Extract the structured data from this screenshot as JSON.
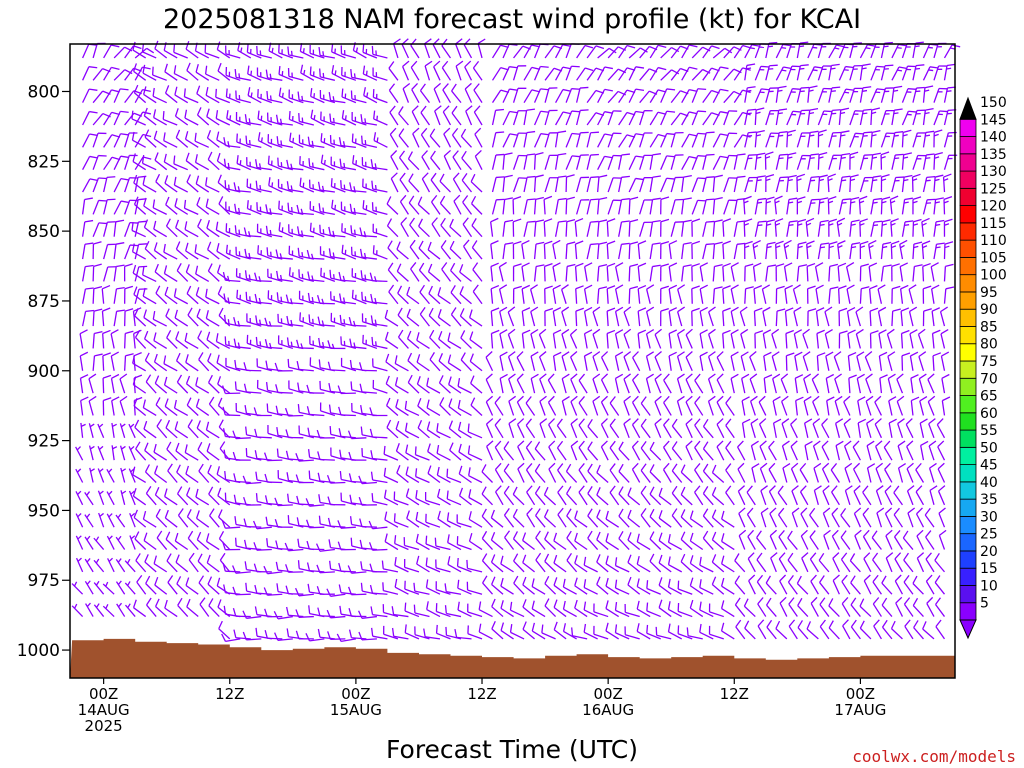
{
  "chart_data": {
    "type": "wind_barb_profile",
    "title": "2025081318 NAM forecast wind profile (kt) for KCAI",
    "xlabel": "Forecast Time (UTC)",
    "ylabel": "",
    "credit": "coolwx.com/models",
    "yaxis": {
      "ticks": [
        800,
        825,
        850,
        875,
        900,
        925,
        950,
        975,
        1000
      ],
      "range": [
        783,
        1010
      ],
      "inverted": true
    },
    "xaxis": {
      "range_hours": [
        -3.2,
        81
      ],
      "ticks": [
        {
          "hours": 0,
          "lines": [
            "00Z",
            "14AUG",
            "2025"
          ]
        },
        {
          "hours": 12,
          "lines": [
            "12Z"
          ]
        },
        {
          "hours": 24,
          "lines": [
            "00Z",
            "15AUG"
          ]
        },
        {
          "hours": 36,
          "lines": [
            "12Z"
          ]
        },
        {
          "hours": 48,
          "lines": [
            "00Z",
            "16AUG"
          ]
        },
        {
          "hours": 60,
          "lines": [
            "12Z"
          ]
        },
        {
          "hours": 72,
          "lines": [
            "00Z",
            "17AUG"
          ]
        }
      ]
    },
    "colorbar": {
      "levels": [
        5,
        10,
        15,
        20,
        25,
        30,
        35,
        40,
        45,
        50,
        55,
        60,
        65,
        70,
        75,
        80,
        85,
        90,
        95,
        100,
        105,
        110,
        115,
        120,
        125,
        130,
        135,
        140,
        145,
        150
      ],
      "colors": [
        "#8a00ff",
        "#5a10f0",
        "#3820ff",
        "#1e40ff",
        "#1a66ff",
        "#1a8cff",
        "#16a8f2",
        "#12c8e0",
        "#00e0c0",
        "#00f0a0",
        "#00e060",
        "#20e020",
        "#50f020",
        "#90f020",
        "#c8f020",
        "#ffff00",
        "#ffe000",
        "#ffc000",
        "#ffa000",
        "#ff8c00",
        "#ff7000",
        "#ff5000",
        "#ff2a00",
        "#ff0000",
        "#f00030",
        "#f00060",
        "#f00090",
        "#f000c0",
        "#f000f0",
        "#000000"
      ]
    },
    "barb_color": "#8b00ff",
    "surface_color": "#a0522d",
    "surface_pressure": [
      {
        "hours": -3.0,
        "p": 996.5
      },
      {
        "hours": 0,
        "p": 996
      },
      {
        "hours": 3,
        "p": 997
      },
      {
        "hours": 6,
        "p": 997.5
      },
      {
        "hours": 9,
        "p": 998
      },
      {
        "hours": 12,
        "p": 999
      },
      {
        "hours": 15,
        "p": 1000
      },
      {
        "hours": 18,
        "p": 999.5
      },
      {
        "hours": 21,
        "p": 999
      },
      {
        "hours": 24,
        "p": 999.5
      },
      {
        "hours": 27,
        "p": 1001
      },
      {
        "hours": 30,
        "p": 1001.5
      },
      {
        "hours": 33,
        "p": 1002
      },
      {
        "hours": 36,
        "p": 1002.5
      },
      {
        "hours": 39,
        "p": 1003
      },
      {
        "hours": 42,
        "p": 1002
      },
      {
        "hours": 45,
        "p": 1001.5
      },
      {
        "hours": 48,
        "p": 1002.5
      },
      {
        "hours": 51,
        "p": 1003
      },
      {
        "hours": 54,
        "p": 1002.5
      },
      {
        "hours": 57,
        "p": 1002
      },
      {
        "hours": 60,
        "p": 1003
      },
      {
        "hours": 63,
        "p": 1003.5
      },
      {
        "hours": 66,
        "p": 1003
      },
      {
        "hours": 69,
        "p": 1002.5
      },
      {
        "hours": 72,
        "p": 1002
      },
      {
        "hours": 75,
        "p": 1002
      },
      {
        "hours": 78,
        "p": 1002
      },
      {
        "hours": 81,
        "p": 1002
      }
    ],
    "wind_segments": [
      {
        "hours_from": -3.2,
        "hours_to": 3,
        "dir_low": 315,
        "dir_high": 40,
        "speed_low": 6,
        "speed_high": 10
      },
      {
        "hours_from": 3,
        "hours_to": 12,
        "dir_low": 315,
        "dir_high": 300,
        "speed_low": 10,
        "speed_high": 10
      },
      {
        "hours_from": 12,
        "hours_to": 27,
        "dir_low": 270,
        "dir_high": 290,
        "speed_low": 10,
        "speed_high": 15
      },
      {
        "hours_from": 27,
        "hours_to": 36,
        "dir_low": 285,
        "dir_high": 335,
        "speed_low": 10,
        "speed_high": 8
      },
      {
        "hours_from": 36,
        "hours_to": 45,
        "dir_low": 300,
        "dir_high": 30,
        "speed_low": 8,
        "speed_high": 10
      },
      {
        "hours_from": 45,
        "hours_to": 60,
        "dir_low": 290,
        "dir_high": 40,
        "speed_low": 8,
        "speed_high": 10
      },
      {
        "hours_from": 60,
        "hours_to": 81,
        "dir_low": 320,
        "dir_high": 20,
        "speed_low": 8,
        "speed_high": 15
      }
    ]
  }
}
